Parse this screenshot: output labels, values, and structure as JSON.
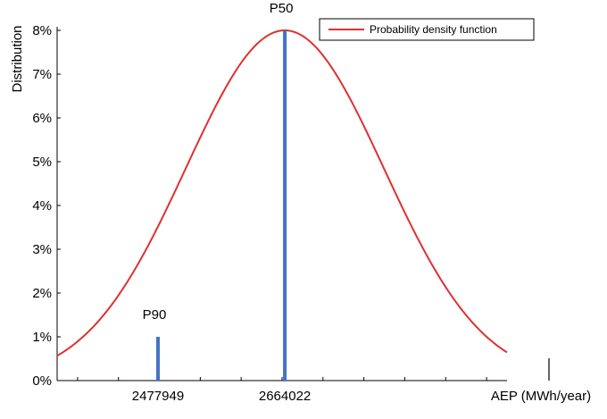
{
  "chart_data": {
    "type": "line",
    "title": "",
    "xlabel": "AEP (MWh/year)",
    "ylabel": "Distribution",
    "y_ticks": [
      "0%",
      "1%",
      "2%",
      "3%",
      "4%",
      "5%",
      "6%",
      "7%",
      "8%"
    ],
    "ylim": [
      0,
      8
    ],
    "xlim": [
      2330000,
      2990000
    ],
    "x_ticks": [
      {
        "value": 2477949,
        "label": "2477949"
      },
      {
        "value": 2664022,
        "label": "2664022"
      }
    ],
    "series": [
      {
        "name": "Probability density function",
        "color": "#e03030",
        "mean": 2664022,
        "std": 145200,
        "peak": 8
      }
    ],
    "markers": [
      {
        "label": "P90",
        "x": 2477949,
        "y": 1.0,
        "color": "#4472c4"
      },
      {
        "label": "P50",
        "x": 2664022,
        "y": 8.0,
        "color": "#4472c4"
      }
    ],
    "legend": {
      "position": "top-right",
      "entries": [
        "Probability density function"
      ]
    },
    "grid": false
  }
}
